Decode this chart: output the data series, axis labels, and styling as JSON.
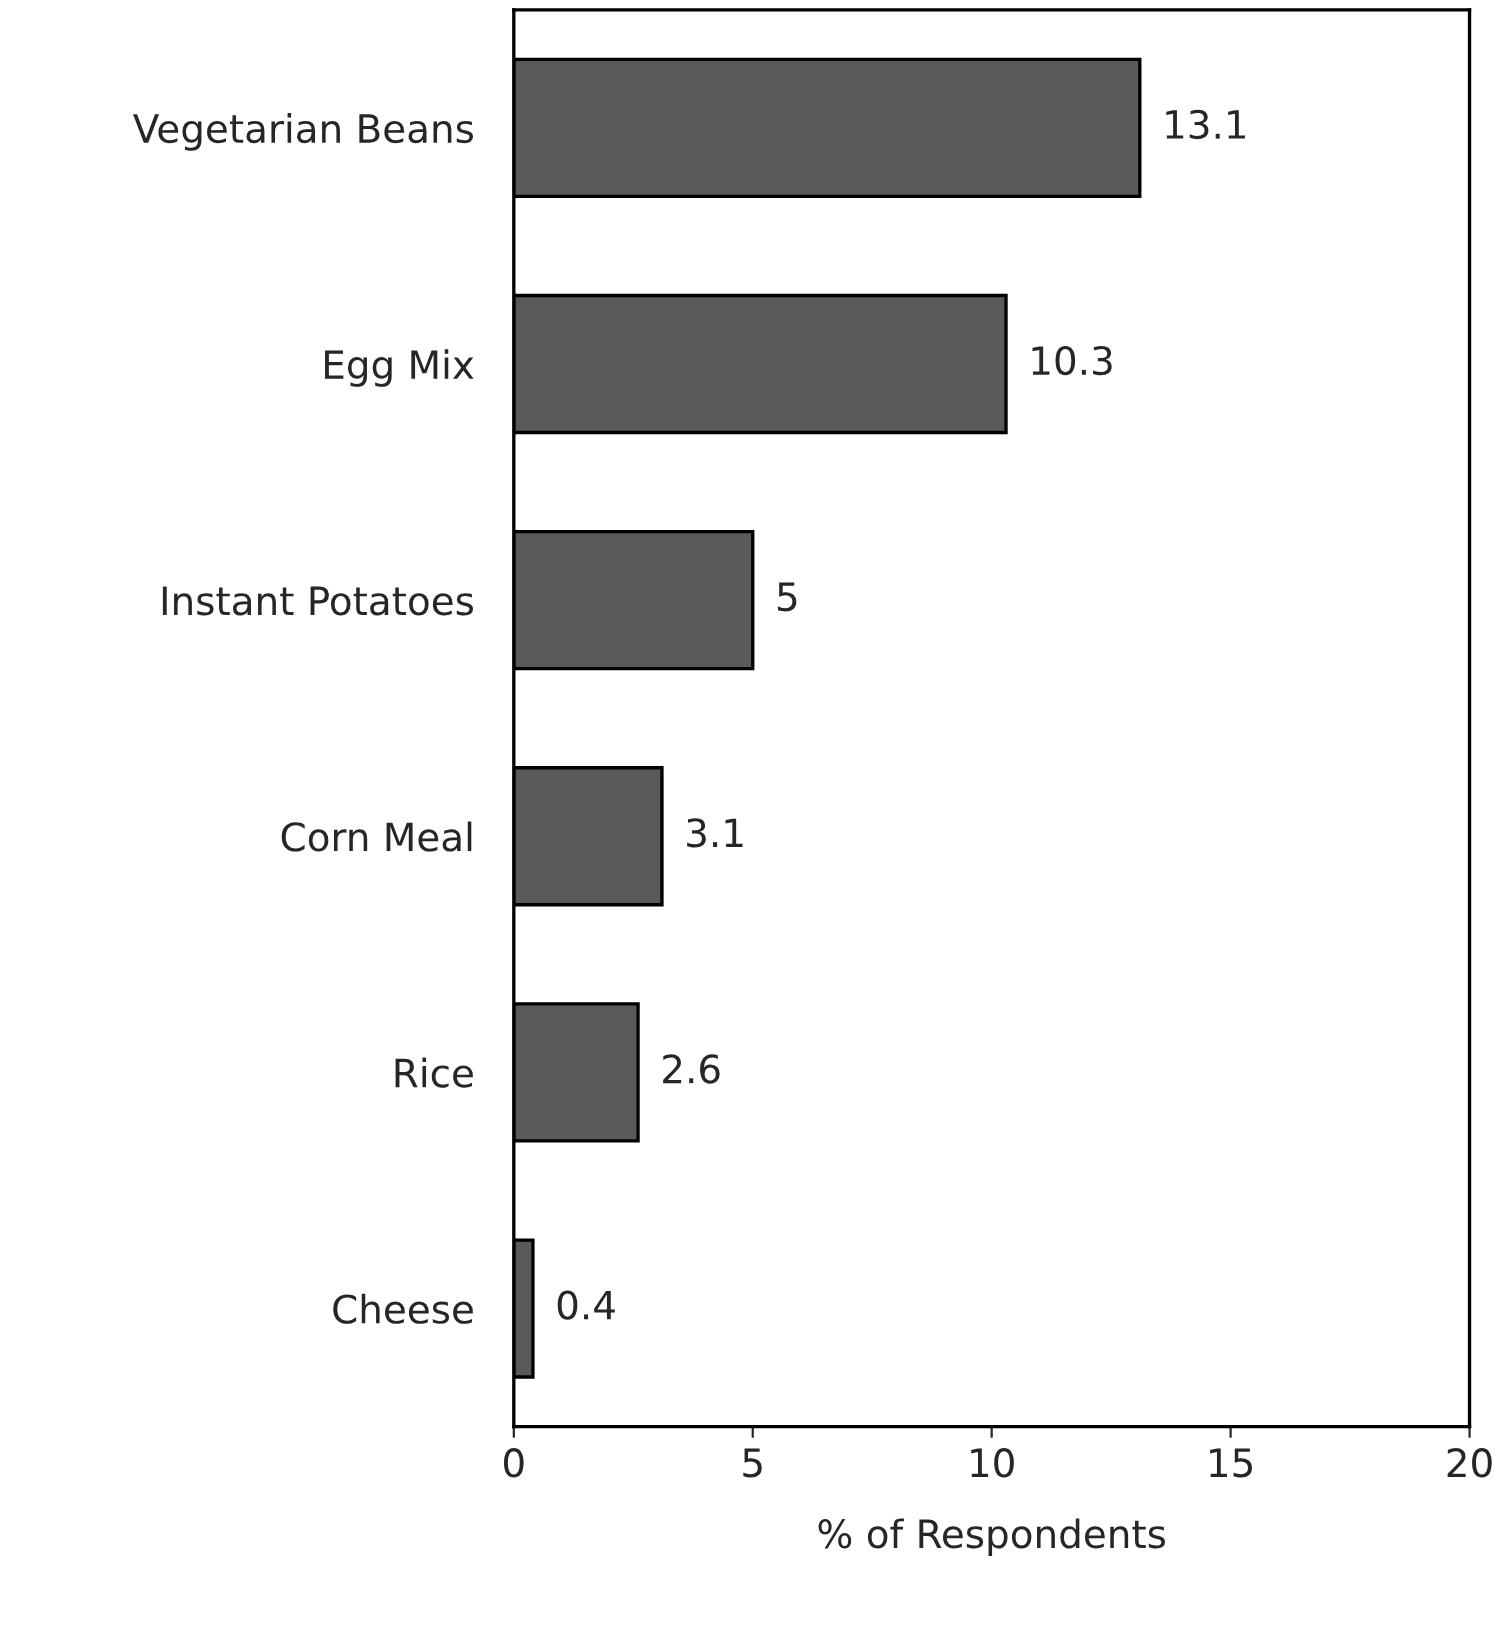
{
  "chart_data": {
    "type": "bar",
    "orientation": "horizontal",
    "xlabel": "% of Respondents",
    "categories": [
      "Vegetarian Beans",
      "Egg Mix",
      "Instant Potatoes",
      "Corn Meal",
      "Rice",
      "Cheese"
    ],
    "values": [
      13.1,
      10.3,
      5,
      3.1,
      2.6,
      0.4
    ],
    "color": "#5a5a5a",
    "xlim": [
      0,
      20
    ],
    "xticks": [
      0,
      5,
      10,
      15,
      20
    ],
    "data_labels": true,
    "grid": false
  }
}
